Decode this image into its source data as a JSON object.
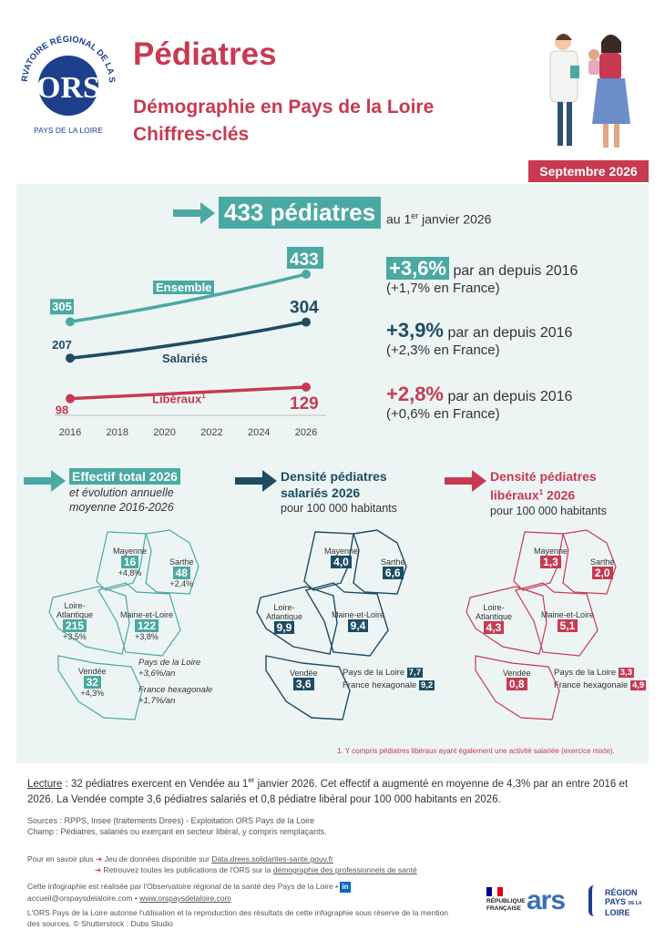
{
  "logo": {
    "text_top": "OBSERVATOIRE RÉGIONAL DE LA SANTÉ",
    "text_bottom": "PAYS DE LA LOIRE",
    "mark": "ORS"
  },
  "header": {
    "title": "Pédiatres",
    "subtitle1": "Démographie en Pays de la Loire",
    "subtitle2": "Chiffres-clés",
    "date": "Septembre 2026"
  },
  "headline": {
    "value": "433 pédiatres",
    "date_pre": "au 1",
    "date_sup": "er",
    "date_post": " janvier 2026"
  },
  "chart_data": {
    "type": "line",
    "x": [
      2016,
      2026
    ],
    "xticks": [
      "2016",
      "2018",
      "2020",
      "2022",
      "2024",
      "2026"
    ],
    "series": [
      {
        "name": "Ensemble",
        "values": [
          305,
          433
        ],
        "color": "#4aa9a2"
      },
      {
        "name": "Salariés",
        "values": [
          207,
          304
        ],
        "color": "#1d4c63"
      },
      {
        "name": "Libéraux",
        "values": [
          98,
          129
        ],
        "color": "#c73a52",
        "sup": "1"
      }
    ]
  },
  "stats": [
    {
      "value": "+3,6%",
      "text": " par an depuis 2016",
      "france": "(+1,7% en France)",
      "color": "#4aa9a2"
    },
    {
      "value": "+3,9%",
      "text": " par an depuis 2016",
      "france": "(+2,3% en France)",
      "color": "#1d4c63"
    },
    {
      "value": "+2,8%",
      "text": " par an depuis 2016",
      "france": "(+0,6% en France)",
      "color": "#c73a52"
    }
  ],
  "maps": {
    "effectif": {
      "title": "Effectif total 2026",
      "subtitle1": "et évolution annuelle",
      "subtitle2": "moyenne 2016-2026",
      "regions": [
        {
          "name": "Mayenne",
          "value": "16",
          "evol": "+4,8%"
        },
        {
          "name": "Sarthe",
          "value": "48",
          "evol": "+2,4%"
        },
        {
          "name": "Loire-Atlantique",
          "value": "215",
          "evol": "+3,5%"
        },
        {
          "name": "Maine-et-Loire",
          "value": "122",
          "evol": "+3,8%"
        },
        {
          "name": "Vendée",
          "value": "32",
          "evol": "+4,3%"
        }
      ],
      "region_total": {
        "name": "Pays de la Loire",
        "evol": "+3,6%/an"
      },
      "france": {
        "name": "France hexagonale",
        "evol": "+1,7%/an"
      }
    },
    "salaries": {
      "title1": "Densité pédiatres",
      "title2": "salariés 2026",
      "subtitle": "pour 100 000 habitants",
      "regions": [
        {
          "name": "Mayenne",
          "value": "4,0"
        },
        {
          "name": "Sarthe",
          "value": "6,6"
        },
        {
          "name": "Loire-Atlantique",
          "value": "9,9"
        },
        {
          "name": "Maine-et-Loire",
          "value": "9,4"
        },
        {
          "name": "Vendée",
          "value": "3,6"
        }
      ],
      "region_total": {
        "name": "Pays de la Loire",
        "value": "7,7"
      },
      "france": {
        "name": "France hexagonale",
        "value": "9,2"
      }
    },
    "liberaux": {
      "title1": "Densité pédiatres",
      "title2": "libéraux",
      "title2_sup": "1",
      "title2_post": " 2026",
      "subtitle": "pour 100 000 habitants",
      "regions": [
        {
          "name": "Mayenne",
          "value": "1,3"
        },
        {
          "name": "Sarthe",
          "value": "2,0"
        },
        {
          "name": "Loire-Atlantique",
          "value": "4,3"
        },
        {
          "name": "Maine-et-Loire",
          "value": "5,1"
        },
        {
          "name": "Vendée",
          "value": "0,8"
        }
      ],
      "region_total": {
        "name": "Pays de la Loire",
        "value": "3,3"
      },
      "france": {
        "name": "France hexagonale",
        "value": "4,9"
      }
    }
  },
  "footnote": "1. Y compris pédiatres libéraux ayant également une activité salariée (exercice mixte).",
  "reading": {
    "label": "Lecture",
    "text1": " : 32 pédiatres exercent en Vendée au 1",
    "sup": "er",
    "text2": " janvier 2026. Cet effectif a augmenté en moyenne de 4,3% par an entre 2016 et 2026. La Vendée compte 3,6 pédiatres salariés et 0,8 pédiatre libéral pour 100 000 habitants en 2026."
  },
  "sources": {
    "line1": "Sources : RPPS, Insee (traitements Drees) - Exploitation ORS Pays de la Loire",
    "line2": "Champ : Pédiatres, salariés ou exerçant en secteur libéral, y compris remplaçants."
  },
  "footer": {
    "more_label": "Pour en savoir plus",
    "link1_pre": "Jeu de données disponible sur ",
    "link1": "Data.drees.solidarites-sante.gouv.fr",
    "link2_pre": "Retrouvez toutes les publications de l'ORS sur la ",
    "link2": "démographie des professionnels de santé",
    "credit": "Cette infographie est réalisée par l'Observatoire régional de la santé des Pays de la Loire •",
    "email": "accueil@orspaysdelaloire.com",
    "website": "www.orspaysdelaloire.com",
    "license": "L'ORS Pays de la Loire autorise l'utilisation et la reproduction des résultats de cette infographie sous réserve de la mention des sources. © Shutterstock : Dubs Studio"
  },
  "partners": {
    "republique": [
      "RÉPUBLIQUE",
      "FRANÇAISE"
    ],
    "ars": "ars",
    "region": [
      "RÉGION",
      "PAYS",
      "DE LA",
      "LOIRE"
    ]
  },
  "colors": {
    "teal": "#4aa9a2",
    "navy": "#1d4c63",
    "red": "#c73a52",
    "panel": "#edf5f4"
  }
}
